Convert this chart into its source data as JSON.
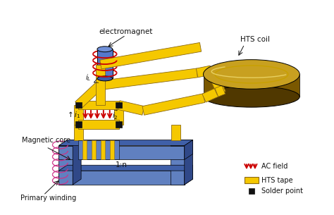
{
  "background_color": "#ffffff",
  "hts_coil_label": "HTS coil",
  "electromagnet_label": "electromagnet",
  "magnetic_core_label": "Magnetic core",
  "primary_winding_label": "Primary winding",
  "ratio_label": "1:n",
  "legend_ac_field": "AC field",
  "legend_hts_tape": "HTS tape",
  "legend_solder": "Solder point",
  "il_label": "$i_L$",
  "i1_label": "$\\uparrow i_1$",
  "i2_label": "$\\vec{i_2}$",
  "yellow": "#F5C800",
  "yellow_dark": "#C8A000",
  "yellow_edge": "#8B6914",
  "blue_face": "#6080C0",
  "blue_mid": "#4060A8",
  "blue_dark": "#203878",
  "blue_side": "#304888",
  "coil_top": "#C8A020",
  "coil_side": "#7A5800",
  "coil_dark": "#503800",
  "red": "#CC0000",
  "black": "#111111",
  "em_blue": "#5578CC",
  "em_blue_top": "#7090D8",
  "em_blue_bot": "#3A5AAA"
}
